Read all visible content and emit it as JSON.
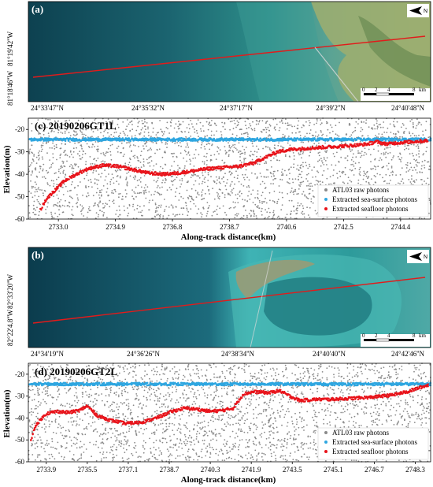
{
  "colors": {
    "raw": "#8a8a8a",
    "surface": "#2ea6e0",
    "seafloor": "#e8131a",
    "track": "#e21b1b"
  },
  "panel_a": {
    "label": "(a)",
    "lat_labels": [
      "81°19'42''W",
      "81°18'46''W"
    ],
    "lon_labels": [
      "24°33'47''N",
      "24°35'32''N",
      "24°37'17''N",
      "24°39'2''N",
      "24°40'48''N"
    ],
    "scale_values": [
      "0",
      "2",
      "4",
      "8"
    ],
    "scale_unit": "km"
  },
  "panel_b": {
    "label": "(b)",
    "lat_labels": [
      "82°33'20''W",
      "82°22'4.8''W"
    ],
    "lon_labels": [
      "24°34'19''N",
      "24°36'26''N",
      "24°38'34''N",
      "24°40'40''N",
      "24°42'46''N"
    ],
    "scale_values": [
      "0",
      "2",
      "4",
      "8"
    ],
    "scale_unit": "km"
  },
  "chart_data": [
    {
      "type": "scatter",
      "panel_label": "(c)",
      "title": "20190206GT1L",
      "xlabel": "Along-track distance(km)",
      "ylabel": "Elevation(m)",
      "xlim": [
        2732.0,
        2745.4
      ],
      "ylim": [
        -60,
        -15
      ],
      "x_ticks": [
        "2733.0",
        "2734.9",
        "2736.8",
        "2738.7",
        "2740.6",
        "2742.5",
        "2744.4"
      ],
      "y_ticks": [
        "-20",
        "-30",
        "-40",
        "-50",
        "-60"
      ],
      "legend": [
        "ATL03 raw photons",
        "Extracted sea-surface photons",
        "Extracted seafloor photons"
      ],
      "legend_position": "bottom-right",
      "sea_surface_elevation": -24.5,
      "seafloor_profile": {
        "x": [
          2732.4,
          2732.6,
          2732.9,
          2733.2,
          2733.6,
          2734.0,
          2734.5,
          2735.0,
          2735.5,
          2736.0,
          2736.5,
          2737.0,
          2737.5,
          2738.0,
          2738.5,
          2739.0,
          2739.5,
          2739.9,
          2740.3,
          2740.7,
          2741.2,
          2741.8,
          2742.4,
          2743.0,
          2743.3,
          2743.6,
          2743.9,
          2744.3,
          2744.8,
          2745.3
        ],
        "y": [
          -56,
          -51,
          -47,
          -43,
          -40,
          -37.5,
          -36,
          -36.5,
          -38,
          -39.5,
          -40,
          -39.5,
          -38.5,
          -37.5,
          -37,
          -36.5,
          -35,
          -32.5,
          -30,
          -29,
          -28.5,
          -28,
          -27.5,
          -27,
          -26.5,
          -25.5,
          -26.5,
          -26,
          -25.5,
          -25
        ]
      }
    },
    {
      "type": "scatter",
      "panel_label": "(d)",
      "title": "20190206GT2L",
      "xlabel": "Along-track distance(km)",
      "ylabel": "Elevation(m)",
      "xlim": [
        2733.2,
        2748.9
      ],
      "ylim": [
        -60,
        -15
      ],
      "x_ticks": [
        "2733.9",
        "2735.5",
        "2737.1",
        "2738.7",
        "2740.3",
        "2741.9",
        "2743.5",
        "2745.1",
        "2746.7",
        "2748.3"
      ],
      "y_ticks": [
        "-20",
        "-30",
        "-40",
        "-50",
        "-60"
      ],
      "legend": [
        "ATL03 raw photons",
        "Extracted sea-surface photons",
        "Extracted seafloor photons"
      ],
      "legend_position": "bottom-right",
      "sea_surface_elevation": -24.5,
      "seafloor_profile": {
        "x": [
          2733.3,
          2733.5,
          2733.9,
          2734.3,
          2734.8,
          2735.2,
          2735.5,
          2735.9,
          2736.4,
          2737.0,
          2737.6,
          2738.2,
          2738.8,
          2739.3,
          2739.8,
          2740.3,
          2740.8,
          2741.2,
          2741.6,
          2742.0,
          2742.6,
          2743.0,
          2743.4,
          2743.8,
          2744.4,
          2745.0,
          2745.8,
          2746.6,
          2747.4,
          2748.0,
          2748.5,
          2748.8
        ],
        "y": [
          -50,
          -43,
          -38,
          -37,
          -37.5,
          -36.5,
          -34.5,
          -39,
          -41,
          -42.5,
          -42,
          -40,
          -37,
          -35.5,
          -36,
          -37,
          -36.5,
          -35.5,
          -29,
          -28,
          -28.5,
          -27.5,
          -30,
          -32,
          -31.5,
          -31.5,
          -31,
          -30.5,
          -29.5,
          -28,
          -26,
          -25
        ]
      }
    }
  ]
}
